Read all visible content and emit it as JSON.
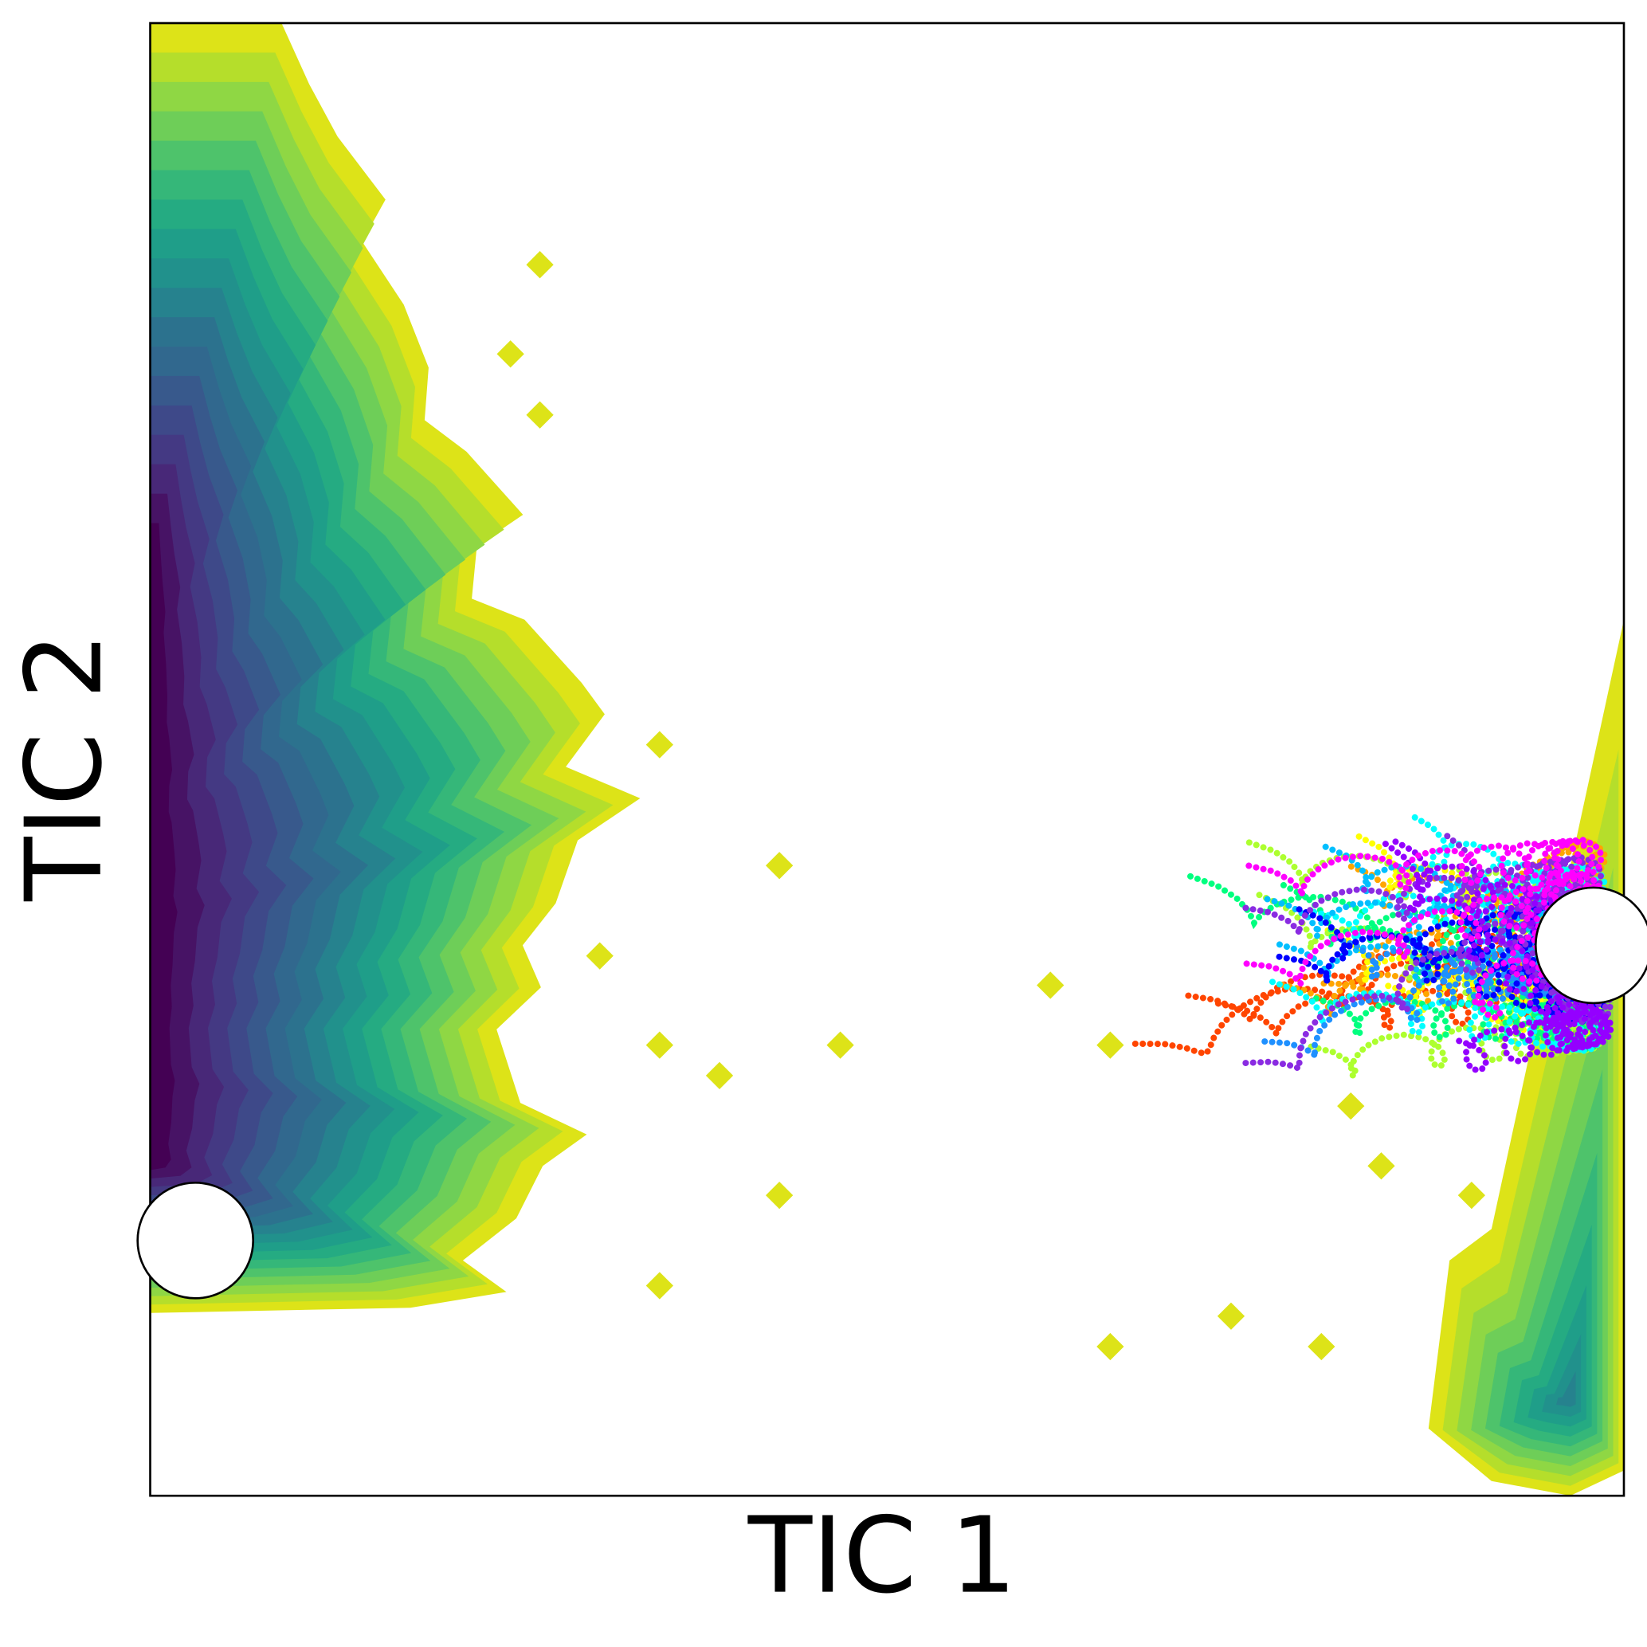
{
  "chart_data": {
    "type": "contour",
    "xlabel": "TIC 1",
    "ylabel": "TIC 2"
  }
}
